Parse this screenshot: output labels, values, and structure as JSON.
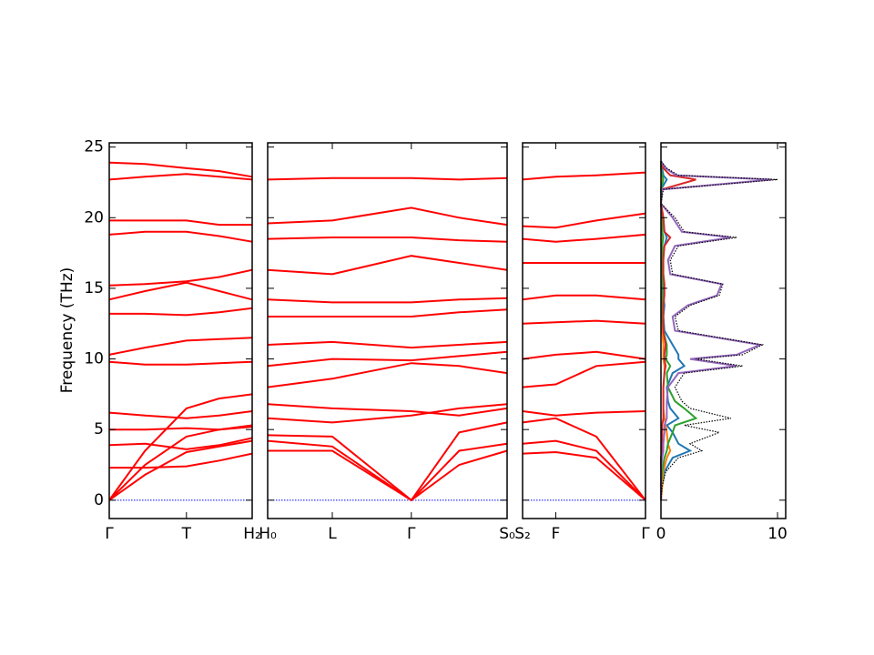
{
  "chart_data": [
    {
      "type": "line",
      "ylabel": "Frequency (THz)",
      "color": "#ff0000",
      "zero_line": {
        "value": 0,
        "color": "#0000ff"
      },
      "xlim": [
        0,
        1
      ],
      "ylim": [
        -1.3,
        25.3
      ],
      "xticks": [
        {
          "value": 0,
          "label": "Γ"
        },
        {
          "value": 0.54,
          "label": "T"
        },
        {
          "value": 1,
          "label": "H₂"
        }
      ],
      "yticks": [
        0,
        5,
        10,
        15,
        20,
        25
      ],
      "x": [
        0,
        0.25,
        0.54,
        0.77,
        1
      ],
      "series": [
        {
          "values": [
            0,
            1.8,
            3.4,
            3.8,
            4.2
          ]
        },
        {
          "values": [
            0,
            2.5,
            4.5,
            5.0,
            5.2
          ]
        },
        {
          "values": [
            0,
            3.5,
            6.5,
            7.2,
            7.5
          ]
        },
        {
          "values": [
            2.3,
            2.3,
            2.4,
            2.8,
            3.3
          ]
        },
        {
          "values": [
            3.9,
            4.0,
            3.6,
            3.9,
            4.4
          ]
        },
        {
          "values": [
            5.0,
            5.0,
            5.1,
            5.0,
            5.3
          ]
        },
        {
          "values": [
            6.2,
            6.0,
            5.8,
            6.0,
            6.3
          ]
        },
        {
          "values": [
            9.8,
            9.6,
            9.6,
            9.7,
            9.8
          ]
        },
        {
          "values": [
            10.3,
            10.8,
            11.3,
            11.4,
            11.5
          ]
        },
        {
          "values": [
            13.2,
            13.2,
            13.1,
            13.3,
            13.6
          ]
        },
        {
          "values": [
            14.2,
            14.8,
            15.4,
            14.8,
            14.2
          ]
        },
        {
          "values": [
            15.2,
            15.3,
            15.5,
            15.8,
            16.3
          ]
        },
        {
          "values": [
            18.8,
            19.0,
            19.0,
            18.7,
            18.3
          ]
        },
        {
          "values": [
            19.8,
            19.8,
            19.8,
            19.5,
            19.5
          ]
        },
        {
          "values": [
            22.7,
            22.9,
            23.1,
            22.9,
            22.7
          ]
        },
        {
          "values": [
            23.9,
            23.8,
            23.5,
            23.3,
            22.9
          ]
        }
      ]
    },
    {
      "type": "line",
      "color": "#ff0000",
      "zero_line": {
        "value": 0,
        "color": "#0000ff"
      },
      "xlim": [
        0,
        1
      ],
      "ylim": [
        -1.3,
        25.3
      ],
      "xticks": [
        {
          "value": 0,
          "label": "H₀"
        },
        {
          "value": 0.27,
          "label": "L"
        },
        {
          "value": 0.6,
          "label": "Γ"
        },
        {
          "value": 1,
          "label": "S₀"
        }
      ],
      "yticks": [
        0,
        5,
        10,
        15,
        20,
        25
      ],
      "x": [
        0,
        0.27,
        0.6,
        0.8,
        1
      ],
      "series": [
        {
          "values": [
            3.5,
            3.5,
            0,
            2.5,
            3.5
          ]
        },
        {
          "values": [
            4.2,
            3.8,
            0,
            3.5,
            4.0
          ]
        },
        {
          "values": [
            4.6,
            4.5,
            0,
            4.8,
            5.5
          ]
        },
        {
          "values": [
            5.8,
            5.5,
            6.0,
            6.5,
            6.8
          ]
        },
        {
          "values": [
            6.8,
            6.5,
            6.3,
            6.0,
            6.5
          ]
        },
        {
          "values": [
            8.0,
            8.6,
            9.7,
            9.5,
            9.0
          ]
        },
        {
          "values": [
            9.5,
            10.0,
            9.9,
            10.2,
            10.5
          ]
        },
        {
          "values": [
            11.0,
            11.2,
            10.8,
            11.0,
            11.2
          ]
        },
        {
          "values": [
            13.0,
            13.0,
            13.0,
            13.3,
            13.5
          ]
        },
        {
          "values": [
            14.2,
            14.0,
            14.0,
            14.2,
            14.3
          ]
        },
        {
          "values": [
            16.3,
            16.0,
            17.3,
            16.8,
            16.3
          ]
        },
        {
          "values": [
            18.5,
            18.6,
            18.6,
            18.4,
            18.3
          ]
        },
        {
          "values": [
            19.6,
            19.8,
            20.7,
            20.0,
            19.5
          ]
        },
        {
          "values": [
            22.7,
            22.8,
            22.8,
            22.7,
            22.8
          ]
        }
      ]
    },
    {
      "type": "line",
      "color": "#ff0000",
      "zero_line": {
        "value": 0,
        "color": "#0000ff"
      },
      "xlim": [
        0,
        1
      ],
      "ylim": [
        -1.3,
        25.3
      ],
      "xticks": [
        {
          "value": 0,
          "label": "S₂"
        },
        {
          "value": 0.27,
          "label": "F"
        },
        {
          "value": 1,
          "label": "Γ"
        }
      ],
      "yticks": [
        0,
        5,
        10,
        15,
        20,
        25
      ],
      "x": [
        0,
        0.27,
        0.6,
        1
      ],
      "series": [
        {
          "values": [
            3.3,
            3.4,
            3.0,
            0
          ]
        },
        {
          "values": [
            4.0,
            4.2,
            3.5,
            0
          ]
        },
        {
          "values": [
            5.5,
            5.8,
            4.5,
            0
          ]
        },
        {
          "values": [
            6.3,
            6.0,
            6.2,
            6.3
          ]
        },
        {
          "values": [
            8.0,
            8.2,
            9.5,
            9.8
          ]
        },
        {
          "values": [
            10.0,
            10.3,
            10.5,
            10.0
          ]
        },
        {
          "values": [
            12.5,
            12.6,
            12.7,
            12.5
          ]
        },
        {
          "values": [
            14.2,
            14.5,
            14.5,
            14.2
          ]
        },
        {
          "values": [
            16.8,
            16.8,
            16.8,
            16.8
          ]
        },
        {
          "values": [
            18.5,
            18.3,
            18.5,
            18.8
          ]
        },
        {
          "values": [
            19.4,
            19.3,
            19.8,
            20.3
          ]
        },
        {
          "values": [
            22.7,
            22.9,
            23.0,
            23.2
          ]
        }
      ]
    },
    {
      "type": "dos",
      "xlim": [
        0,
        10.7
      ],
      "ylim": [
        -1.3,
        25.3
      ],
      "xticks": [
        0,
        10
      ],
      "yticks": [
        0,
        5,
        10,
        15,
        20,
        25
      ],
      "y": [
        0,
        1,
        2,
        3,
        3.5,
        4,
        4.8,
        5.3,
        5.8,
        6.5,
        7,
        8,
        9,
        9.5,
        10,
        10.3,
        11,
        12,
        13,
        13.8,
        14.5,
        15.3,
        16,
        17,
        18,
        18.6,
        19,
        20,
        21,
        22,
        22.7,
        23,
        23.5,
        24
      ],
      "series": [
        {
          "color": "#1f77b4",
          "values": [
            0,
            0.1,
            0.3,
            1,
            2.5,
            1.5,
            1,
            0.5,
            1.5,
            0.8,
            0.6,
            0.5,
            1,
            2,
            1.5,
            1.5,
            1,
            0.3,
            0.2,
            0.3,
            0.2,
            0.2,
            0.1,
            0.1,
            0.3,
            0.5,
            0.3,
            0.2,
            0,
            0,
            0.5,
            0.2,
            0.1,
            0
          ]
        },
        {
          "color": "#ff7f0e",
          "values": [
            0,
            0.1,
            0.2,
            0.5,
            0.8,
            0.6,
            0.5,
            0.4,
            0.3,
            0.2,
            0.2,
            0.2,
            0.3,
            0.3,
            0.2,
            0.2,
            0.2,
            0.1,
            0.1,
            0.1,
            0.1,
            0.1,
            0.1,
            0.1,
            0.1,
            0.1,
            0.1,
            0.1,
            0,
            0,
            0.1,
            0.1,
            0,
            0
          ]
        },
        {
          "color": "#2ca02c",
          "values": [
            0,
            0,
            0.1,
            0.3,
            0.5,
            0.6,
            1,
            1.2,
            3,
            2,
            1.2,
            0.6,
            0.5,
            0.8,
            0.4,
            0.5,
            0.5,
            0.2,
            0.1,
            0.1,
            0.1,
            0.1,
            0.1,
            0.1,
            0.1,
            0.2,
            0.1,
            0.1,
            0,
            0,
            0.2,
            0.1,
            0,
            0
          ]
        },
        {
          "color": "#d62728",
          "values": [
            0,
            0,
            0,
            0,
            0.1,
            0.1,
            0.1,
            0.1,
            0.2,
            0.2,
            0.2,
            0.2,
            0.3,
            0.4,
            0.3,
            0.3,
            0.4,
            0.2,
            0.2,
            0.2,
            0.3,
            0.3,
            0.2,
            0.2,
            0.3,
            0.8,
            0.3,
            0.2,
            0,
            0.1,
            3,
            0.8,
            0.2,
            0
          ]
        },
        {
          "color": "#9467bd",
          "values": [
            0,
            0,
            0,
            0.1,
            0.2,
            0.2,
            0.3,
            0.3,
            0.5,
            0.5,
            0.5,
            0.6,
            1.5,
            6.5,
            2.5,
            6.5,
            8.5,
            1.2,
            1,
            2.3,
            4.8,
            5.2,
            0.8,
            0.6,
            1.2,
            6,
            1.8,
            1,
            0,
            0.1,
            9.5,
            1.3,
            0.4,
            0
          ]
        },
        {
          "color": "#000000",
          "style": "dotted",
          "values": [
            0,
            0.1,
            0.4,
            1.5,
            3.5,
            2.5,
            5,
            2,
            6,
            2.5,
            1.8,
            1.2,
            2,
            7,
            3,
            7,
            8.7,
            1.5,
            1.2,
            2.5,
            5,
            5.3,
            1,
            0.8,
            1.5,
            6.5,
            2,
            1.2,
            0,
            0.2,
            10,
            1.5,
            0.5,
            0
          ]
        }
      ]
    }
  ]
}
